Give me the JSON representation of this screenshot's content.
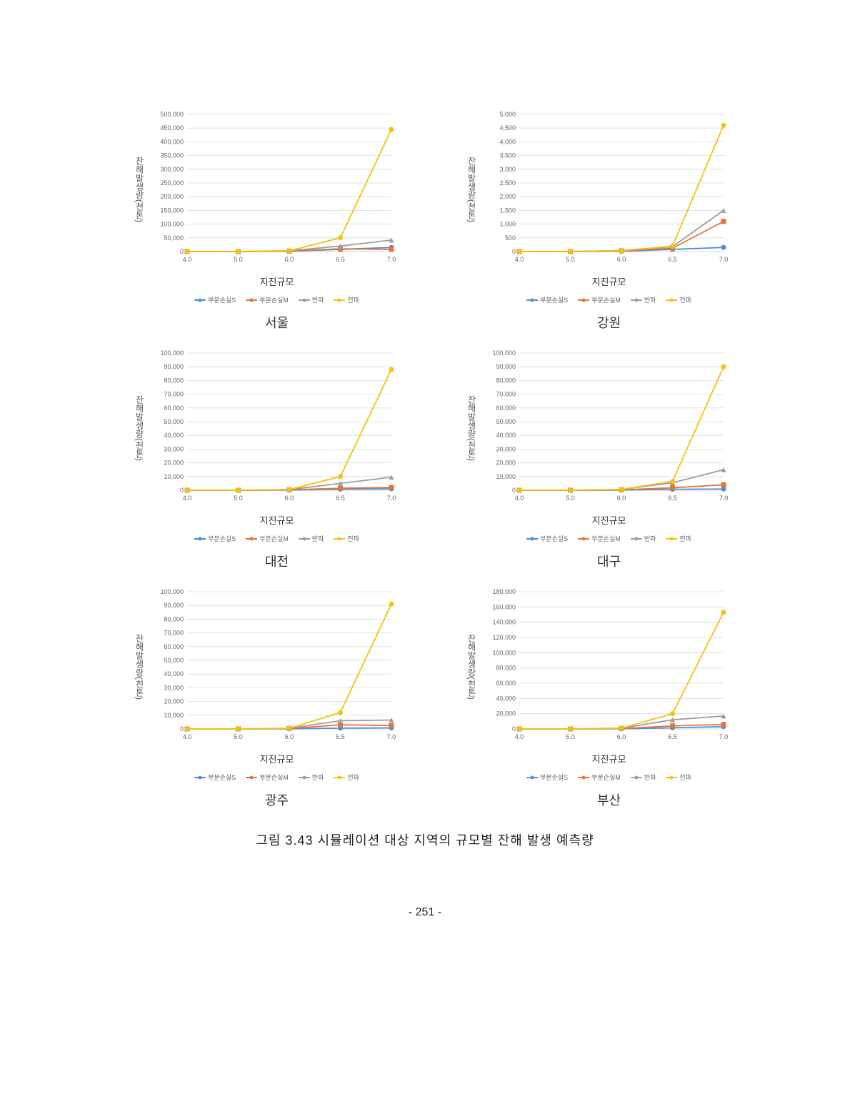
{
  "figure_caption": "그림 3.43 시뮬레이션 대상 지역의 규모별 잔해 발생 예측량",
  "page_number": "- 251 -",
  "common": {
    "x_label": "지진규모",
    "y_label": "잔해발생량(천톤)",
    "x_categories": [
      "4.0",
      "5.0",
      "6.0",
      "6.5",
      "7.0"
    ],
    "series_meta": [
      {
        "key": "s1",
        "label": "부분손실S",
        "color": "#4a90d9",
        "marker": "circle"
      },
      {
        "key": "s2",
        "label": "부분손실M",
        "color": "#e8743b",
        "marker": "square"
      },
      {
        "key": "s3",
        "label": "반파",
        "color": "#9e9e9e",
        "marker": "triangle"
      },
      {
        "key": "s4",
        "label": "전파",
        "color": "#f4c20d",
        "marker": "circle"
      }
    ],
    "grid_color": "#d9d9d9",
    "background": "#ffffff",
    "tick_fontsize": 9,
    "axis_label_fontsize": 13,
    "title_fontsize": 18,
    "line_width": 1.8,
    "marker_size": 3.5
  },
  "charts": [
    {
      "title": "서울",
      "ymax": 500000,
      "ystep": 50000,
      "series": {
        "s1": [
          0,
          0,
          1000,
          8000,
          15000
        ],
        "s2": [
          0,
          0,
          2000,
          10000,
          8000
        ],
        "s3": [
          0,
          0,
          3000,
          20000,
          42000
        ],
        "s4": [
          500,
          500,
          3000,
          50000,
          445000
        ]
      }
    },
    {
      "title": "강원",
      "ymax": 5000,
      "ystep": 500,
      "series": {
        "s1": [
          0,
          0,
          10,
          80,
          150
        ],
        "s2": [
          0,
          0,
          30,
          120,
          1100
        ],
        "s3": [
          0,
          0,
          40,
          180,
          1500
        ],
        "s4": [
          5,
          5,
          30,
          200,
          4600
        ]
      }
    },
    {
      "title": "대전",
      "ymax": 100000,
      "ystep": 10000,
      "series": {
        "s1": [
          0,
          0,
          100,
          800,
          1000
        ],
        "s2": [
          0,
          0,
          300,
          1500,
          2000
        ],
        "s3": [
          0,
          0,
          500,
          5000,
          9500
        ],
        "s4": [
          100,
          100,
          500,
          10000,
          88000
        ]
      }
    },
    {
      "title": "대구",
      "ymax": 100000,
      "ystep": 10000,
      "series": {
        "s1": [
          0,
          0,
          100,
          700,
          900
        ],
        "s2": [
          0,
          0,
          300,
          1800,
          4000
        ],
        "s3": [
          0,
          0,
          600,
          5500,
          15000
        ],
        "s4": [
          100,
          100,
          600,
          6500,
          90000
        ]
      }
    },
    {
      "title": "광주",
      "ymax": 100000,
      "ystep": 10000,
      "series": {
        "s1": [
          0,
          0,
          100,
          600,
          800
        ],
        "s2": [
          0,
          0,
          300,
          3000,
          2500
        ],
        "s3": [
          0,
          0,
          500,
          6000,
          6500
        ],
        "s4": [
          100,
          100,
          500,
          12000,
          91000
        ]
      }
    },
    {
      "title": "부산",
      "ymax": 180000,
      "ystep": 20000,
      "series": {
        "s1": [
          0,
          0,
          200,
          1500,
          3000
        ],
        "s2": [
          0,
          0,
          500,
          4000,
          6000
        ],
        "s3": [
          0,
          0,
          1000,
          12000,
          17000
        ],
        "s4": [
          200,
          200,
          1000,
          20000,
          153000
        ]
      }
    }
  ]
}
